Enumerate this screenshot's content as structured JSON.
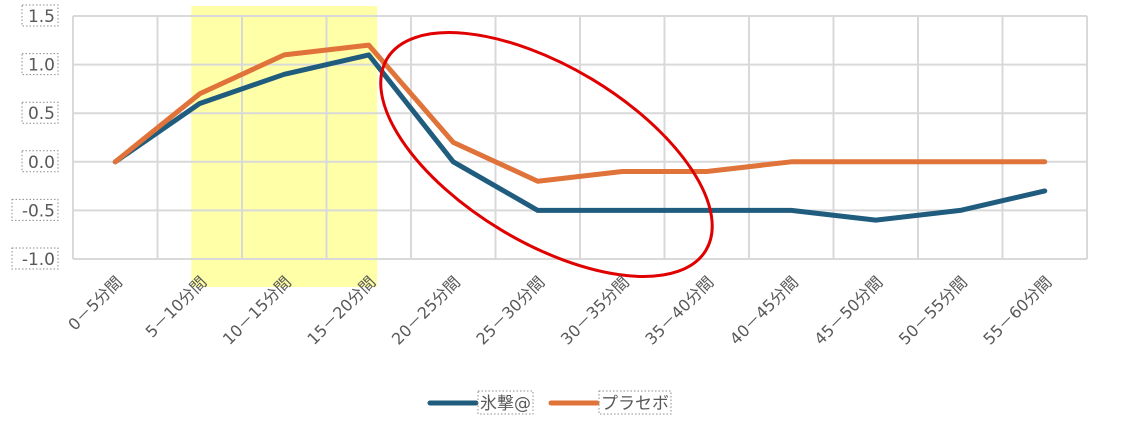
{
  "chart_data": {
    "type": "line",
    "categories": [
      "0－5分間",
      "5－10分間",
      "10－15分間",
      "15－20分間",
      "20－25分間",
      "25－30分間",
      "30－35分間",
      "35－40分間",
      "40－45分間",
      "45－50分間",
      "50－55分間",
      "55－60分間"
    ],
    "series": [
      {
        "name": "氷撃@",
        "color": "#1f5c7e",
        "values": [
          0.0,
          0.6,
          0.9,
          1.1,
          0.0,
          -0.5,
          -0.5,
          -0.5,
          -0.5,
          -0.6,
          -0.5,
          -0.3
        ]
      },
      {
        "name": "プラセボ",
        "color": "#e0733a",
        "values": [
          0.0,
          0.7,
          1.1,
          1.2,
          0.2,
          -0.2,
          -0.1,
          -0.1,
          0.0,
          0.0,
          0.0,
          0.0
        ]
      }
    ],
    "yticks": [
      "1.5",
      "1.0",
      "0.5",
      "0.0",
      "-0.5",
      "-1.0"
    ],
    "ylim": [
      -1.0,
      1.5
    ],
    "grid": true,
    "legend_position": "bottom",
    "highlight_band": {
      "from_category": "5－10分間",
      "to_category": "15－20分間",
      "color": "#ffff99"
    },
    "annotation_ellipse": {
      "description": "red ellipse around 20－40分間 region",
      "color": "#e00000"
    },
    "title": "",
    "xlabel": "",
    "ylabel": ""
  }
}
